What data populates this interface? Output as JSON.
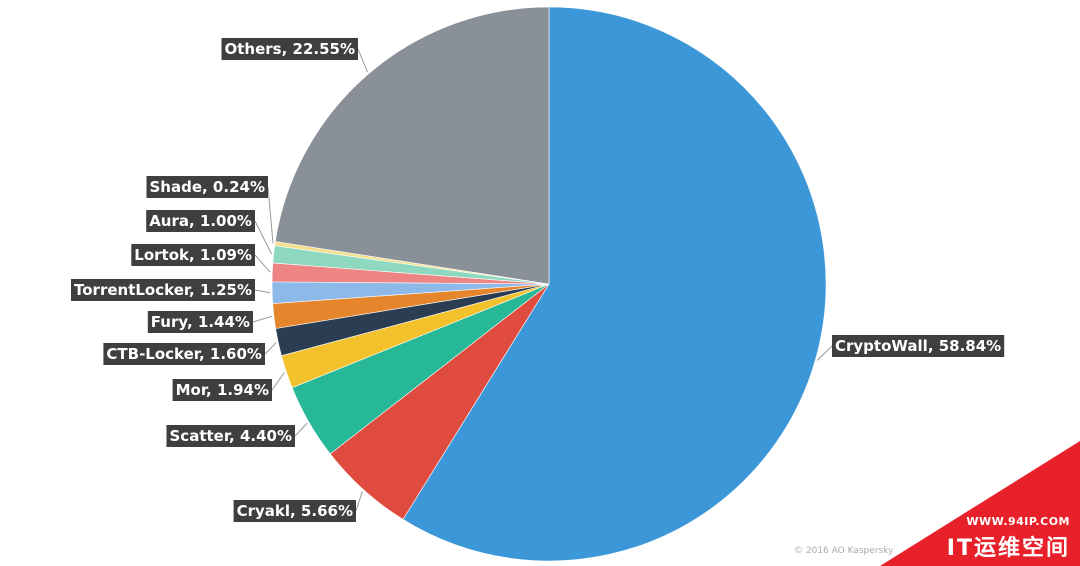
{
  "chart_data": {
    "type": "pie",
    "title": "",
    "slices": [
      {
        "label": "CryptoWall",
        "value": 58.84,
        "text": "CryptoWall, 58.84%",
        "color": "#3b97d8"
      },
      {
        "label": "Cryakl",
        "value": 5.66,
        "text": "Cryakl, 5.66%",
        "color": "#e04b3f"
      },
      {
        "label": "Scatter",
        "value": 4.4,
        "text": "Scatter, 4.40%",
        "color": "#26b897"
      },
      {
        "label": "Mor",
        "value": 1.94,
        "text": "Mor, 1.94%",
        "color": "#f2c12c"
      },
      {
        "label": "CTB-Locker",
        "value": 1.6,
        "text": "CTB-Locker, 1.60%",
        "color": "#2a3d52"
      },
      {
        "label": "Fury",
        "value": 1.44,
        "text": "Fury, 1.44%",
        "color": "#e5852c"
      },
      {
        "label": "TorrentLocker",
        "value": 1.25,
        "text": "TorrentLocker, 1.25%",
        "color": "#8db9e8"
      },
      {
        "label": "Lortok",
        "value": 1.09,
        "text": "Lortok, 1.09%",
        "color": "#ee8585"
      },
      {
        "label": "Aura",
        "value": 1.0,
        "text": "Aura, 1.00%",
        "color": "#8fd8c0"
      },
      {
        "label": "Shade",
        "value": 0.24,
        "text": "Shade, 0.24%",
        "color": "#f4df8a"
      },
      {
        "label": "Others",
        "value": 22.55,
        "text": "Others, 22.55%",
        "color": "#8a9097"
      }
    ]
  },
  "footer": {
    "copyright": "© 2016 AO Kaspersky Lab"
  },
  "watermark": {
    "url": "WWW.94IP.COM",
    "name": "IT运维空间"
  }
}
